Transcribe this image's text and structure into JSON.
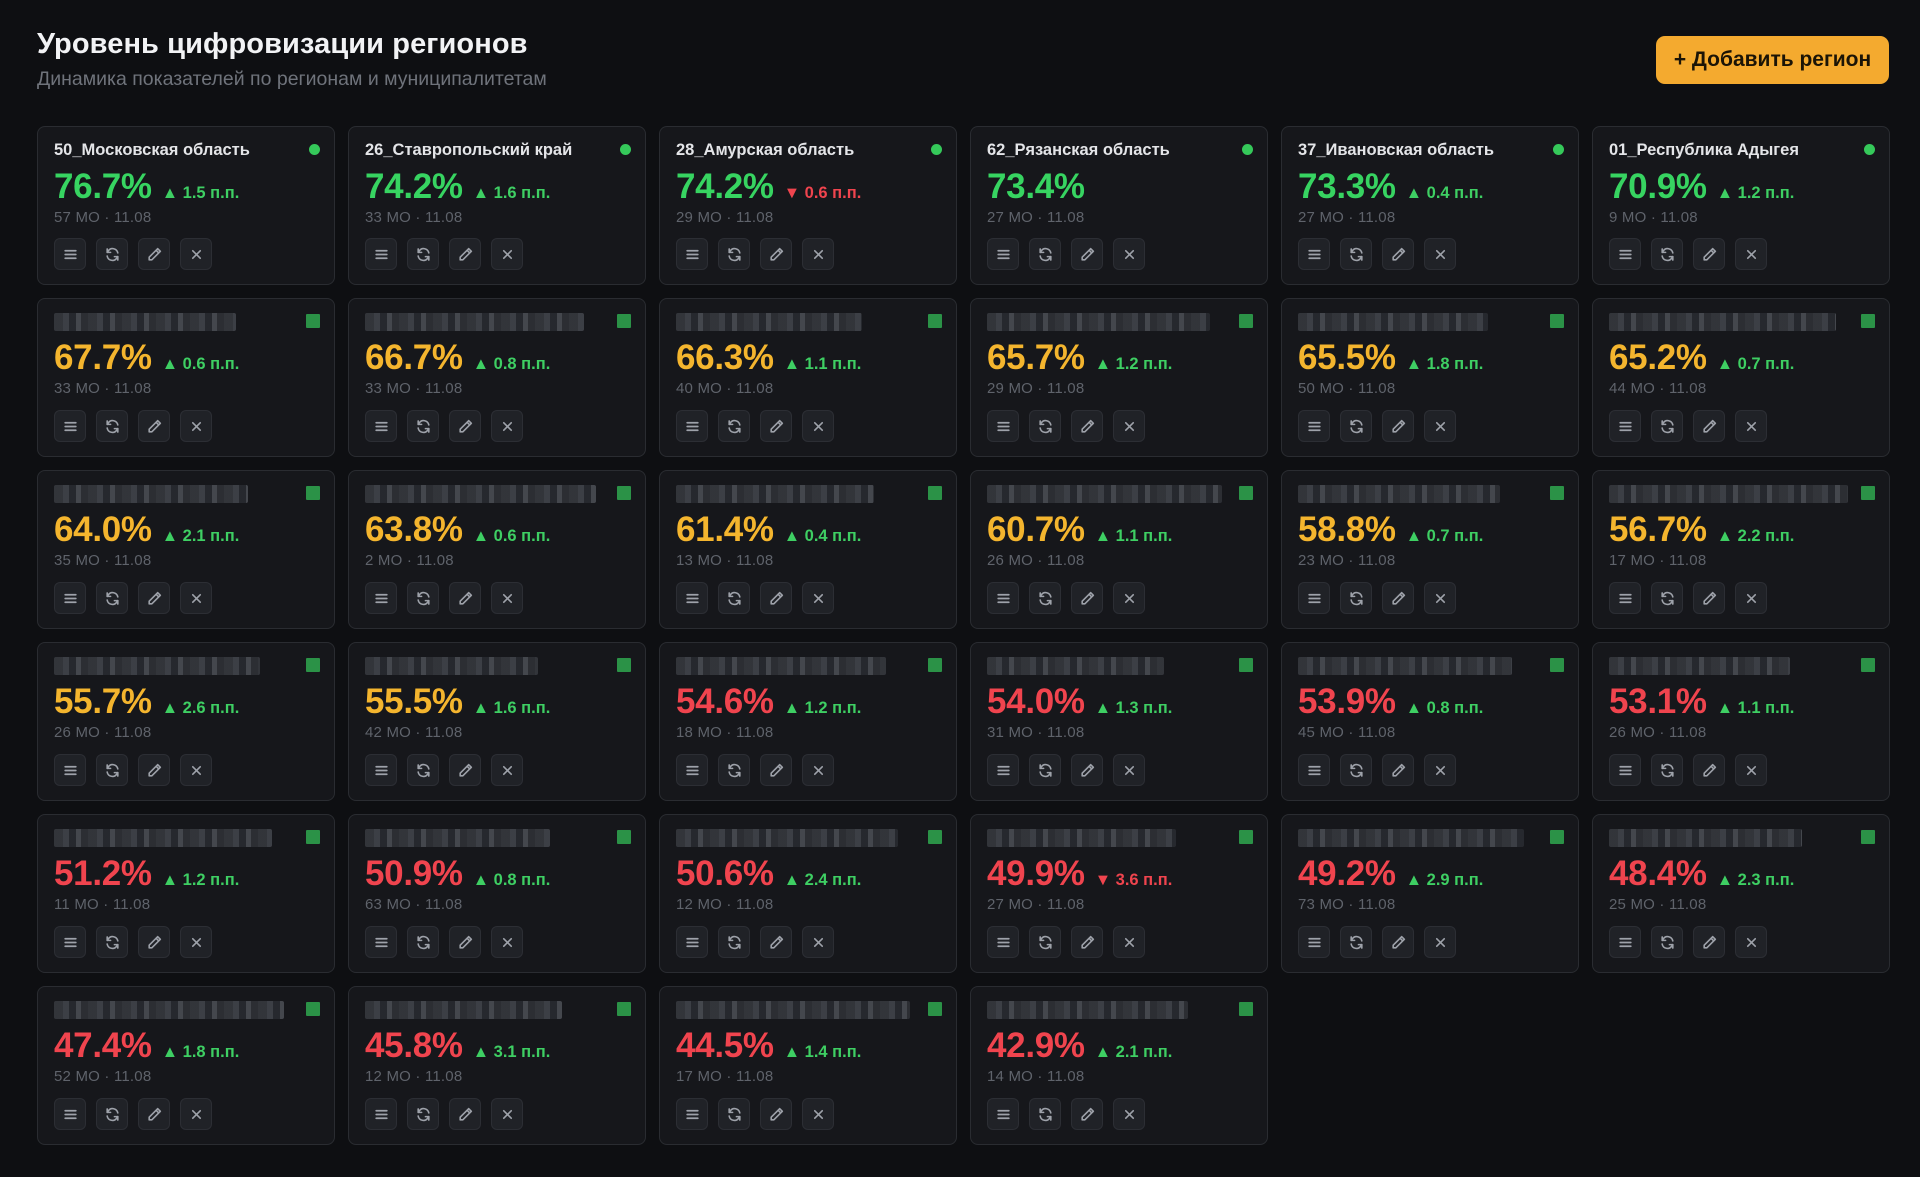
{
  "header": {
    "title": "Уровень цифровизации регионов",
    "subtitle": "Динамика показателей по регионам и муниципалитетам",
    "add_button_label": "+ Добавить регион"
  },
  "colors": {
    "green": "#37d461",
    "yellow": "#f4b52e",
    "red": "#f0444e",
    "accent": "#f4aa2f"
  },
  "cards": [
    {
      "name": "50_Московская область",
      "masked": false,
      "value": "76.7%",
      "level": "green",
      "delta": "▲ 1.5 п.п.",
      "dir": "up",
      "meta": "57 МО · 11.08"
    },
    {
      "name": "26_Ставропольский край",
      "masked": false,
      "value": "74.2%",
      "level": "green",
      "delta": "▲ 1.6 п.п.",
      "dir": "up",
      "meta": "33 МО · 11.08"
    },
    {
      "name": "28_Амурская область",
      "masked": false,
      "value": "74.2%",
      "level": "green",
      "delta": "▼ 0.6 п.п.",
      "dir": "down",
      "meta": "29 МО · 11.08"
    },
    {
      "name": "62_Рязанская область",
      "masked": false,
      "value": "73.4%",
      "level": "green",
      "delta": "",
      "dir": "up",
      "meta": "27 МО · 11.08"
    },
    {
      "name": "37_Ивановская область",
      "masked": false,
      "value": "73.3%",
      "level": "green",
      "delta": "▲ 0.4 п.п.",
      "dir": "up",
      "meta": "27 МО · 11.08"
    },
    {
      "name": "01_Республика Адыгея",
      "masked": false,
      "value": "70.9%",
      "level": "green",
      "delta": "▲ 1.2 п.п.",
      "dir": "up",
      "meta": "9 МО · 11.08"
    },
    {
      "name": "",
      "masked": true,
      "value": "67.7%",
      "level": "yellow",
      "delta": "▲ 0.6 п.п.",
      "dir": "up",
      "meta": "33 МО · 11.08"
    },
    {
      "name": "",
      "masked": true,
      "value": "66.7%",
      "level": "yellow",
      "delta": "▲ 0.8 п.п.",
      "dir": "up",
      "meta": "33 МО · 11.08"
    },
    {
      "name": "",
      "masked": true,
      "value": "66.3%",
      "level": "yellow",
      "delta": "▲ 1.1 п.п.",
      "dir": "up",
      "meta": "40 МО · 11.08"
    },
    {
      "name": "",
      "masked": true,
      "value": "65.7%",
      "level": "yellow",
      "delta": "▲ 1.2 п.п.",
      "dir": "up",
      "meta": "29 МО · 11.08"
    },
    {
      "name": "",
      "masked": true,
      "value": "65.5%",
      "level": "yellow",
      "delta": "▲ 1.8 п.п.",
      "dir": "up",
      "meta": "50 МО · 11.08"
    },
    {
      "name": "",
      "masked": true,
      "value": "65.2%",
      "level": "yellow",
      "delta": "▲ 0.7 п.п.",
      "dir": "up",
      "meta": "44 МО · 11.08"
    },
    {
      "name": "",
      "masked": true,
      "value": "64.0%",
      "level": "yellow",
      "delta": "▲ 2.1 п.п.",
      "dir": "up",
      "meta": "35 МО · 11.08"
    },
    {
      "name": "",
      "masked": true,
      "value": "63.8%",
      "level": "yellow",
      "delta": "▲ 0.6 п.п.",
      "dir": "up",
      "meta": "2 МО · 11.08"
    },
    {
      "name": "",
      "masked": true,
      "value": "61.4%",
      "level": "yellow",
      "delta": "▲ 0.4 п.п.",
      "dir": "up",
      "meta": "13 МО · 11.08"
    },
    {
      "name": "",
      "masked": true,
      "value": "60.7%",
      "level": "yellow",
      "delta": "▲ 1.1 п.п.",
      "dir": "up",
      "meta": "26 МО · 11.08"
    },
    {
      "name": "",
      "masked": true,
      "value": "58.8%",
      "level": "yellow",
      "delta": "▲ 0.7 п.п.",
      "dir": "up",
      "meta": "23 МО · 11.08"
    },
    {
      "name": "",
      "masked": true,
      "value": "56.7%",
      "level": "yellow",
      "delta": "▲ 2.2 п.п.",
      "dir": "up",
      "meta": "17 МО · 11.08"
    },
    {
      "name": "",
      "masked": true,
      "value": "55.7%",
      "level": "yellow",
      "delta": "▲ 2.6 п.п.",
      "dir": "up",
      "meta": "26 МО · 11.08"
    },
    {
      "name": "",
      "masked": true,
      "value": "55.5%",
      "level": "yellow",
      "delta": "▲ 1.6 п.п.",
      "dir": "up",
      "meta": "42 МО · 11.08"
    },
    {
      "name": "",
      "masked": true,
      "value": "54.6%",
      "level": "red",
      "delta": "▲ 1.2 п.п.",
      "dir": "up",
      "meta": "18 МО · 11.08"
    },
    {
      "name": "",
      "masked": true,
      "value": "54.0%",
      "level": "red",
      "delta": "▲ 1.3 п.п.",
      "dir": "up",
      "meta": "31 МО · 11.08"
    },
    {
      "name": "",
      "masked": true,
      "value": "53.9%",
      "level": "red",
      "delta": "▲ 0.8 п.п.",
      "dir": "up",
      "meta": "45 МО · 11.08"
    },
    {
      "name": "",
      "masked": true,
      "value": "53.1%",
      "level": "red",
      "delta": "▲ 1.1 п.п.",
      "dir": "up",
      "meta": "26 МО · 11.08"
    },
    {
      "name": "",
      "masked": true,
      "value": "51.2%",
      "level": "red",
      "delta": "▲ 1.2 п.п.",
      "dir": "up",
      "meta": "11 МО · 11.08"
    },
    {
      "name": "",
      "masked": true,
      "value": "50.9%",
      "level": "red",
      "delta": "▲ 0.8 п.п.",
      "dir": "up",
      "meta": "63 МО · 11.08"
    },
    {
      "name": "",
      "masked": true,
      "value": "50.6%",
      "level": "red",
      "delta": "▲ 2.4 п.п.",
      "dir": "up",
      "meta": "12 МО · 11.08"
    },
    {
      "name": "",
      "masked": true,
      "value": "49.9%",
      "level": "red",
      "delta": "▼ 3.6 п.п.",
      "dir": "down",
      "meta": "27 МО · 11.08"
    },
    {
      "name": "",
      "masked": true,
      "value": "49.2%",
      "level": "red",
      "delta": "▲ 2.9 п.п.",
      "dir": "up",
      "meta": "73 МО · 11.08"
    },
    {
      "name": "",
      "masked": true,
      "value": "48.4%",
      "level": "red",
      "delta": "▲ 2.3 п.п.",
      "dir": "up",
      "meta": "25 МО · 11.08"
    },
    {
      "name": "",
      "masked": true,
      "value": "47.4%",
      "level": "red",
      "delta": "▲ 1.8 п.п.",
      "dir": "up",
      "meta": "52 МО · 11.08"
    },
    {
      "name": "",
      "masked": true,
      "value": "45.8%",
      "level": "red",
      "delta": "▲ 3.1 п.п.",
      "dir": "up",
      "meta": "12 МО · 11.08"
    },
    {
      "name": "",
      "masked": true,
      "value": "44.5%",
      "level": "red",
      "delta": "▲ 1.4 п.п.",
      "dir": "up",
      "meta": "17 МО · 11.08"
    },
    {
      "name": "",
      "masked": true,
      "value": "42.9%",
      "level": "red",
      "delta": "▲ 2.1 п.п.",
      "dir": "up",
      "meta": "14 МО · 11.08"
    }
  ],
  "card_actions": [
    {
      "key": "list",
      "icon": "list-icon"
    },
    {
      "key": "refresh",
      "icon": "refresh-icon"
    },
    {
      "key": "edit",
      "icon": "pencil-icon"
    },
    {
      "key": "delete",
      "icon": "close-icon"
    }
  ]
}
